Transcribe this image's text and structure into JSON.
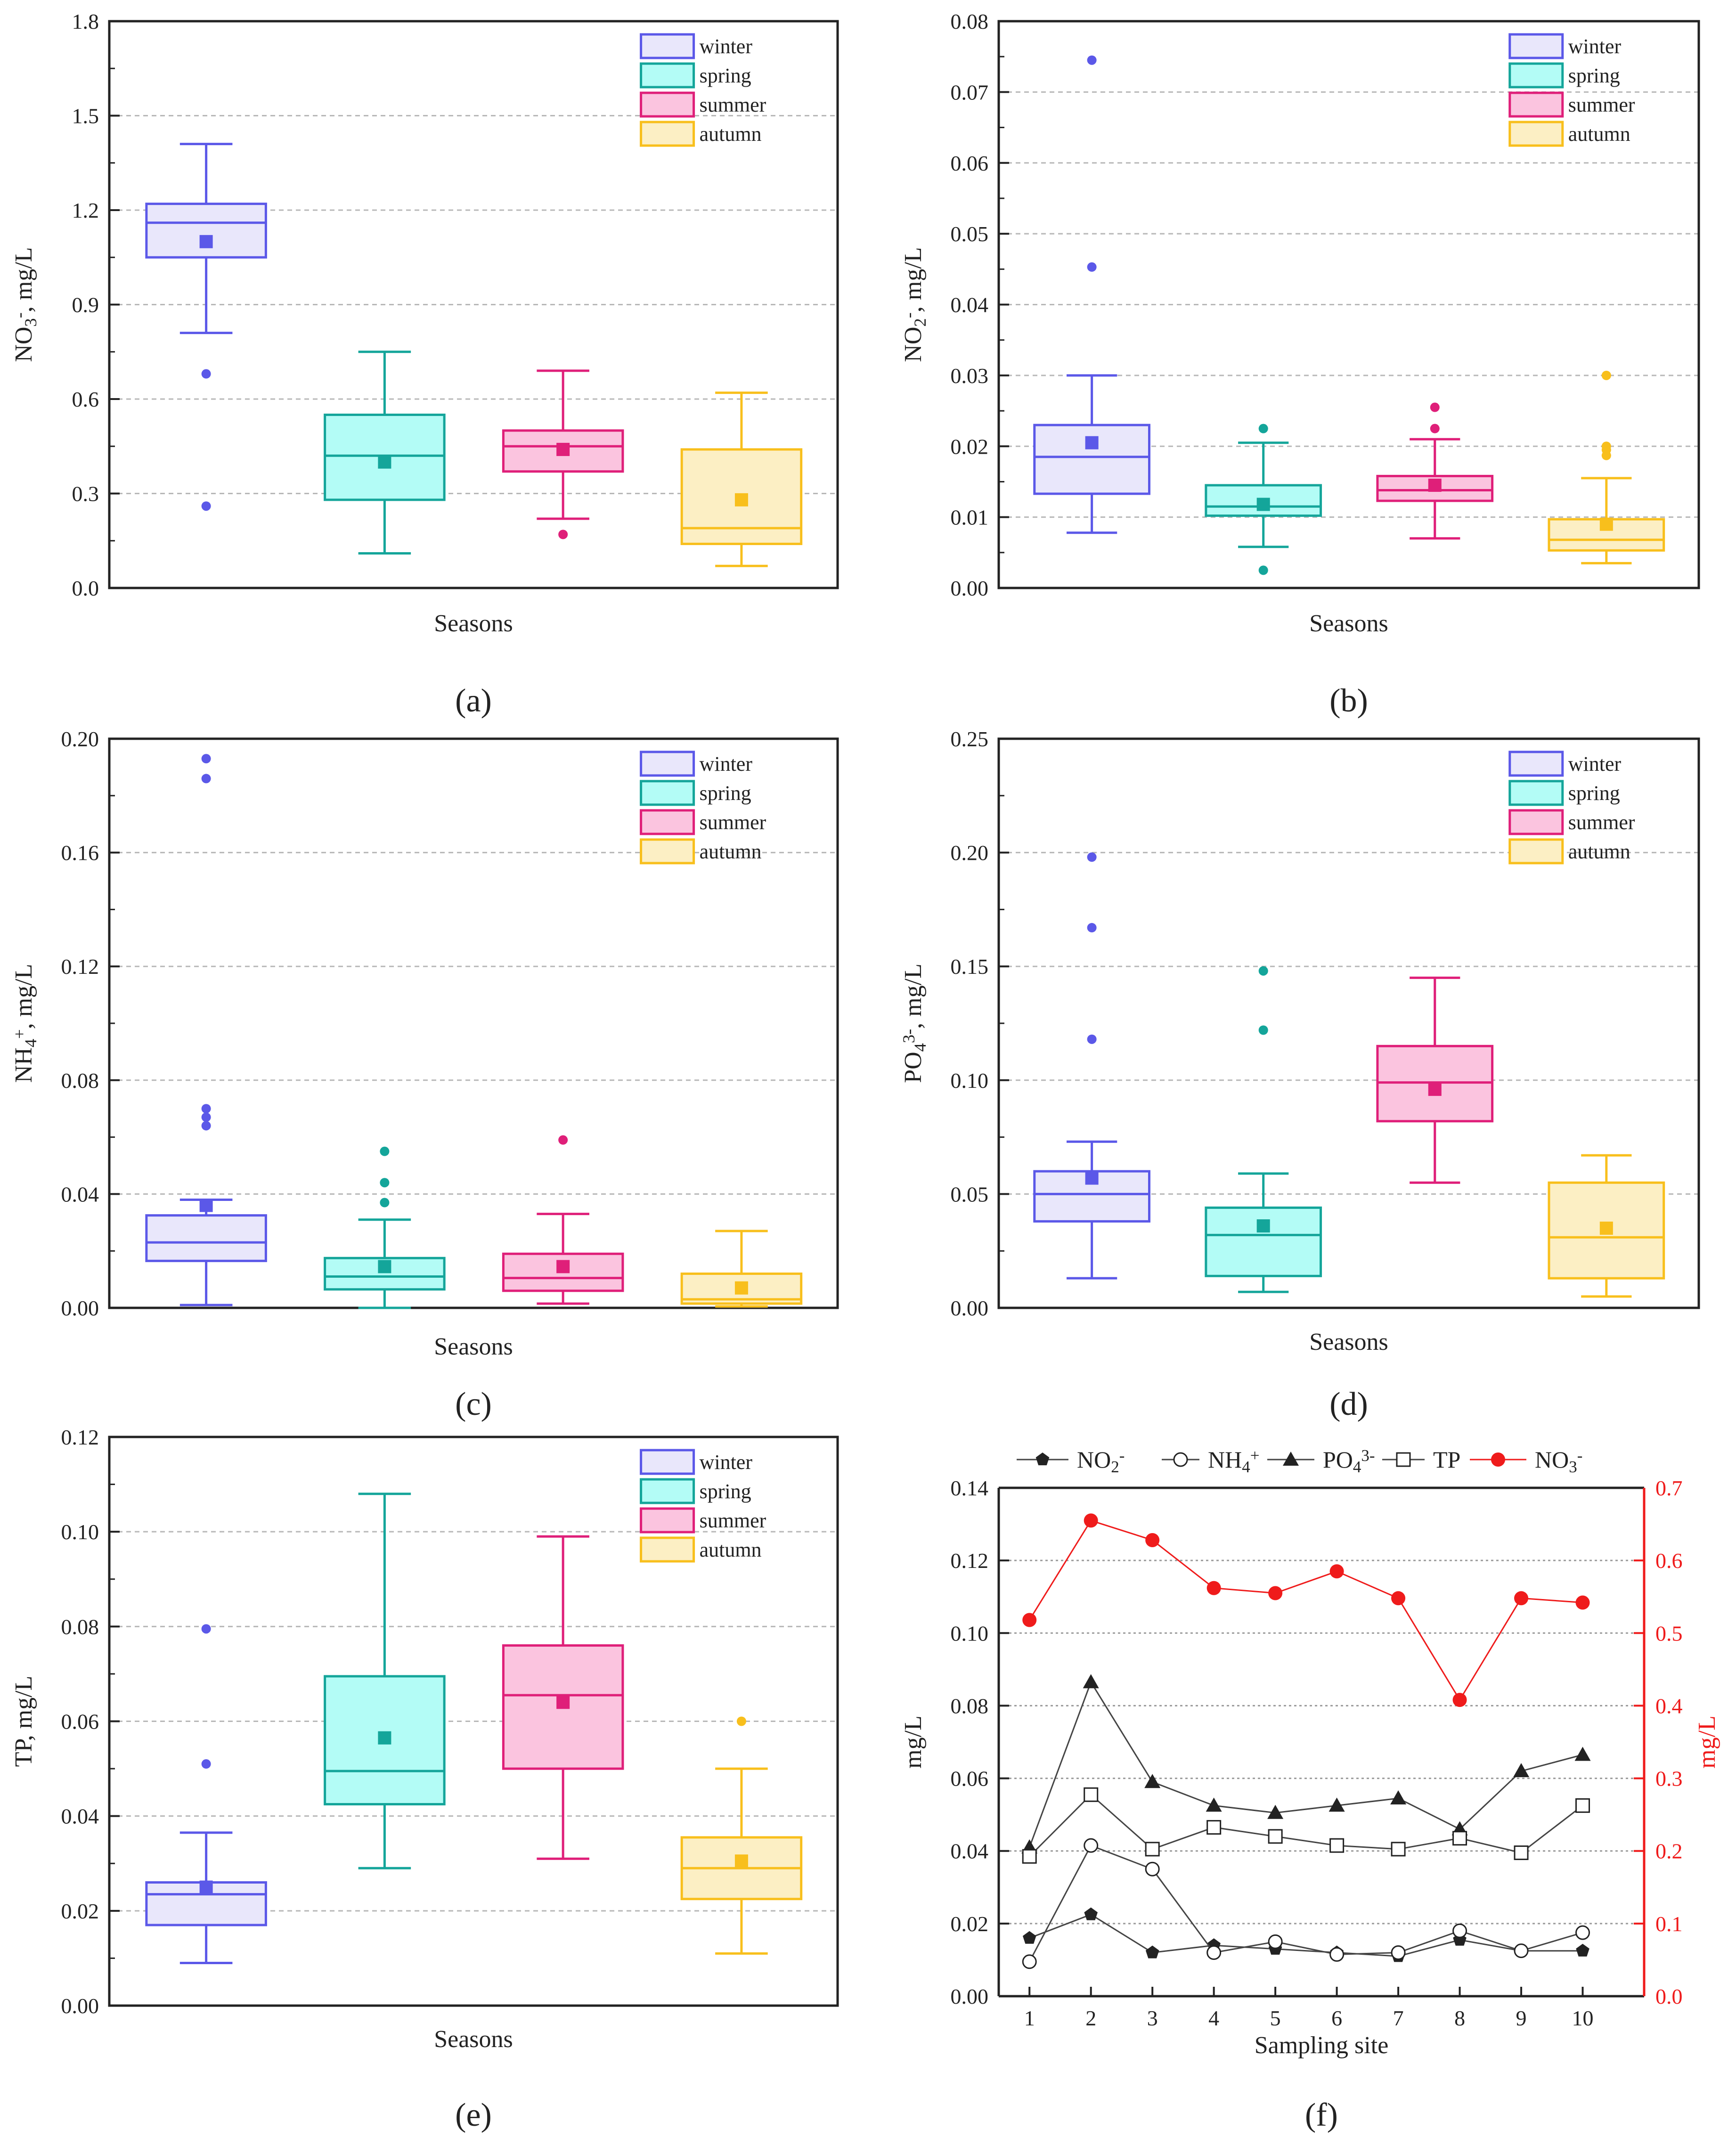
{
  "seasons": [
    "winter",
    "spring",
    "summer",
    "autumn"
  ],
  "season_colors": {
    "stroke": [
      "#5b58e8",
      "#14a59a",
      "#df1f79",
      "#f8bf1c"
    ],
    "fill": [
      "#e9e7fb",
      "#b3fcf6",
      "#fbc4df",
      "#fcefc4"
    ]
  },
  "line_colors": {
    "black": "#222222",
    "red": "#ef1b1b"
  },
  "chart_data": [
    {
      "id": "a",
      "type": "box",
      "caption": "(a)",
      "xlabel": "Seasons",
      "ylabel": "NO3-, mg/L",
      "ylim": [
        0,
        1.8
      ],
      "yticks": [
        "0.0",
        "0.3",
        "0.6",
        "0.9",
        "1.2",
        "1.5",
        "1.8"
      ],
      "grid": true,
      "legend": "top-right",
      "boxes": [
        {
          "name": "winter",
          "whisker_low": 0.81,
          "q1": 1.05,
          "median": 1.16,
          "q3": 1.22,
          "whisker_high": 1.41,
          "mean": 1.1,
          "outliers": [
            0.68,
            0.26
          ]
        },
        {
          "name": "spring",
          "whisker_low": 0.11,
          "q1": 0.28,
          "median": 0.42,
          "q3": 0.55,
          "whisker_high": 0.75,
          "mean": 0.4,
          "outliers": []
        },
        {
          "name": "summer",
          "whisker_low": 0.22,
          "q1": 0.37,
          "median": 0.45,
          "q3": 0.5,
          "whisker_high": 0.69,
          "mean": 0.44,
          "outliers": [
            0.17
          ]
        },
        {
          "name": "autumn",
          "whisker_low": 0.07,
          "q1": 0.14,
          "median": 0.19,
          "q3": 0.44,
          "whisker_high": 0.62,
          "mean": 0.28,
          "outliers": []
        }
      ]
    },
    {
      "id": "b",
      "type": "box",
      "caption": "(b)",
      "xlabel": "Seasons",
      "ylabel": "NO2-, mg/L",
      "ylim": [
        0,
        0.08
      ],
      "yticks": [
        "0.00",
        "0.01",
        "0.02",
        "0.03",
        "0.04",
        "0.05",
        "0.06",
        "0.07",
        "0.08"
      ],
      "grid": true,
      "legend": "top-right",
      "boxes": [
        {
          "name": "winter",
          "whisker_low": 0.0078,
          "q1": 0.0133,
          "median": 0.0185,
          "q3": 0.023,
          "whisker_high": 0.03,
          "mean": 0.0205,
          "outliers": [
            0.0745,
            0.0453
          ]
        },
        {
          "name": "spring",
          "whisker_low": 0.0058,
          "q1": 0.0102,
          "median": 0.0115,
          "q3": 0.0145,
          "whisker_high": 0.0205,
          "mean": 0.0118,
          "outliers": [
            0.0225,
            0.0025
          ]
        },
        {
          "name": "summer",
          "whisker_low": 0.007,
          "q1": 0.0123,
          "median": 0.0138,
          "q3": 0.0158,
          "whisker_high": 0.021,
          "mean": 0.0145,
          "outliers": [
            0.0255,
            0.0225
          ]
        },
        {
          "name": "autumn",
          "whisker_low": 0.0035,
          "q1": 0.0053,
          "median": 0.0068,
          "q3": 0.0097,
          "whisker_high": 0.0155,
          "mean": 0.009,
          "outliers": [
            0.03,
            0.02,
            0.0195,
            0.0187
          ]
        }
      ]
    },
    {
      "id": "c",
      "type": "box",
      "caption": "(c)",
      "xlabel": "Seasons",
      "ylabel": "NH4+, mg/L",
      "ylim": [
        0,
        0.2
      ],
      "yticks": [
        "0.00",
        "0.04",
        "0.08",
        "0.12",
        "0.16",
        "0.20"
      ],
      "grid": true,
      "legend": "top-right",
      "boxes": [
        {
          "name": "winter",
          "whisker_low": 0.001,
          "q1": 0.0165,
          "median": 0.023,
          "q3": 0.0325,
          "whisker_high": 0.038,
          "mean": 0.036,
          "outliers": [
            0.193,
            0.186,
            0.07,
            0.067,
            0.064
          ]
        },
        {
          "name": "spring",
          "whisker_low": 0.0,
          "q1": 0.0065,
          "median": 0.011,
          "q3": 0.0175,
          "whisker_high": 0.031,
          "mean": 0.0145,
          "outliers": [
            0.055,
            0.044,
            0.037
          ]
        },
        {
          "name": "summer",
          "whisker_low": 0.0015,
          "q1": 0.006,
          "median": 0.0105,
          "q3": 0.019,
          "whisker_high": 0.033,
          "mean": 0.0145,
          "outliers": [
            0.059
          ]
        },
        {
          "name": "autumn",
          "whisker_low": 0.0005,
          "q1": 0.0015,
          "median": 0.003,
          "q3": 0.012,
          "whisker_high": 0.027,
          "mean": 0.007,
          "outliers": []
        }
      ]
    },
    {
      "id": "d",
      "type": "box",
      "caption": "(d)",
      "xlabel": "Seasons",
      "ylabel": "PO43-, mg/L",
      "ylim": [
        0,
        0.25
      ],
      "yticks": [
        "0.00",
        "0.05",
        "0.10",
        "0.15",
        "0.20",
        "0.25"
      ],
      "grid": true,
      "legend": "top-right",
      "boxes": [
        {
          "name": "winter",
          "whisker_low": 0.013,
          "q1": 0.038,
          "median": 0.05,
          "q3": 0.06,
          "whisker_high": 0.073,
          "mean": 0.057,
          "outliers": [
            0.198,
            0.167,
            0.118
          ]
        },
        {
          "name": "spring",
          "whisker_low": 0.007,
          "q1": 0.014,
          "median": 0.032,
          "q3": 0.044,
          "whisker_high": 0.059,
          "mean": 0.036,
          "outliers": [
            0.148,
            0.122
          ]
        },
        {
          "name": "summer",
          "whisker_low": 0.055,
          "q1": 0.082,
          "median": 0.099,
          "q3": 0.115,
          "whisker_high": 0.145,
          "mean": 0.096,
          "outliers": []
        },
        {
          "name": "autumn",
          "whisker_low": 0.005,
          "q1": 0.013,
          "median": 0.031,
          "q3": 0.055,
          "whisker_high": 0.067,
          "mean": 0.035,
          "outliers": []
        }
      ]
    },
    {
      "id": "e",
      "type": "box",
      "caption": "(e)",
      "xlabel": "Seasons",
      "ylabel": "TP, mg/L",
      "ylim": [
        0,
        0.12
      ],
      "yticks": [
        "0.00",
        "0.02",
        "0.04",
        "0.06",
        "0.08",
        "0.10",
        "0.12"
      ],
      "grid": true,
      "legend": "top-right",
      "boxes": [
        {
          "name": "winter",
          "whisker_low": 0.009,
          "q1": 0.017,
          "median": 0.0235,
          "q3": 0.026,
          "whisker_high": 0.0365,
          "mean": 0.025,
          "outliers": [
            0.0795,
            0.051
          ]
        },
        {
          "name": "spring",
          "whisker_low": 0.029,
          "q1": 0.0425,
          "median": 0.0495,
          "q3": 0.0695,
          "whisker_high": 0.108,
          "mean": 0.0565,
          "outliers": []
        },
        {
          "name": "summer",
          "whisker_low": 0.031,
          "q1": 0.05,
          "median": 0.0655,
          "q3": 0.076,
          "whisker_high": 0.099,
          "mean": 0.064,
          "outliers": []
        },
        {
          "name": "autumn",
          "whisker_low": 0.011,
          "q1": 0.0225,
          "median": 0.029,
          "q3": 0.0355,
          "whisker_high": 0.05,
          "mean": 0.0305,
          "outliers": [
            0.06
          ]
        }
      ]
    },
    {
      "id": "f",
      "type": "line",
      "caption": "(f)",
      "xlabel": "Sampling site",
      "ylabel": "mg/L",
      "ylabel_right": "mg/L",
      "x": [
        1,
        2,
        3,
        4,
        5,
        6,
        7,
        8,
        9,
        10
      ],
      "ylim": [
        0,
        0.14
      ],
      "yticks": [
        "0.00",
        "0.02",
        "0.04",
        "0.06",
        "0.08",
        "0.10",
        "0.12",
        "0.14"
      ],
      "ylim_right": [
        0,
        0.7
      ],
      "yticks_right": [
        "0.0",
        "0.1",
        "0.2",
        "0.3",
        "0.4",
        "0.5",
        "0.6",
        "0.7"
      ],
      "grid": true,
      "legend": "top",
      "series": [
        {
          "name": "NO2-",
          "marker": "pentagon",
          "color": "black",
          "axis": "left",
          "values": [
            0.016,
            0.0225,
            0.012,
            0.014,
            0.013,
            0.012,
            0.011,
            0.0155,
            0.0125,
            0.0125
          ]
        },
        {
          "name": "NH4+",
          "marker": "open-circle",
          "color": "black",
          "axis": "left",
          "values": [
            0.0095,
            0.0415,
            0.035,
            0.012,
            0.015,
            0.0115,
            0.012,
            0.018,
            0.0125,
            0.0175
          ]
        },
        {
          "name": "PO43-",
          "marker": "triangle",
          "color": "black",
          "axis": "left",
          "values": [
            0.041,
            0.0865,
            0.059,
            0.0525,
            0.0505,
            0.0525,
            0.0545,
            0.046,
            0.062,
            0.0665
          ]
        },
        {
          "name": "TP",
          "marker": "open-square",
          "color": "black",
          "axis": "left",
          "values": [
            0.0385,
            0.0555,
            0.0405,
            0.0465,
            0.044,
            0.0415,
            0.0405,
            0.0435,
            0.0395,
            0.0525
          ]
        },
        {
          "name": "NO3-",
          "marker": "circle",
          "color": "red",
          "axis": "right",
          "values": [
            0.518,
            0.655,
            0.628,
            0.562,
            0.555,
            0.585,
            0.548,
            0.408,
            0.548,
            0.542
          ]
        }
      ]
    }
  ]
}
